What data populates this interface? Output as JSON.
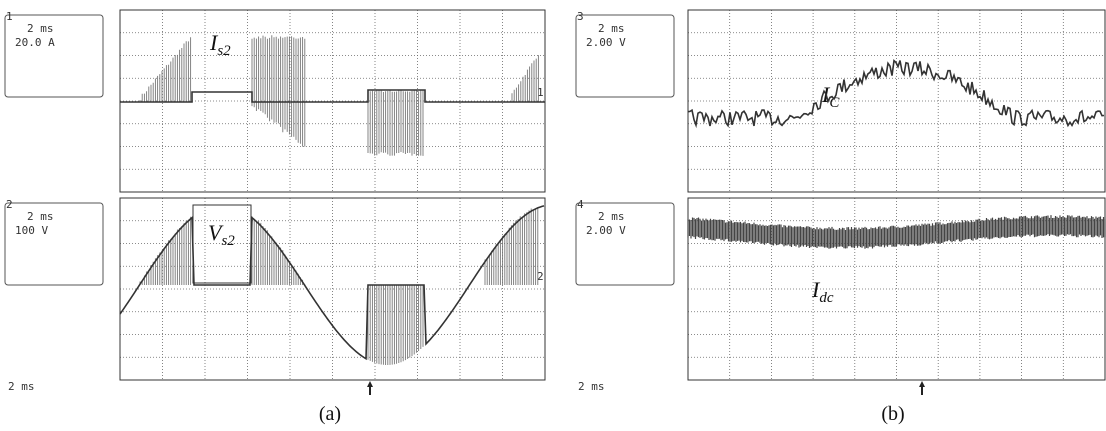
{
  "panels": [
    {
      "caption": "(a)",
      "timebase": "2 ms",
      "channels": [
        {
          "number": "1",
          "box_lines": [
            "2 ms",
            "20.0 A"
          ],
          "trace_label": "I",
          "trace_sub": "s2",
          "marker": "1"
        },
        {
          "number": "2",
          "box_lines": [
            "2 ms",
            "100 V"
          ],
          "trace_label": "V",
          "trace_sub": "s2",
          "marker": "2"
        }
      ]
    },
    {
      "caption": "(b)",
      "timebase": "2 ms",
      "channels": [
        {
          "number": "3",
          "box_lines": [
            "2 ms",
            "2.00 V"
          ],
          "trace_label": "I",
          "trace_sub": "C"
        },
        {
          "number": "4",
          "box_lines": [
            "2 ms",
            "2.00 V"
          ],
          "trace_label": "I",
          "trace_sub": "dc"
        }
      ]
    }
  ]
}
